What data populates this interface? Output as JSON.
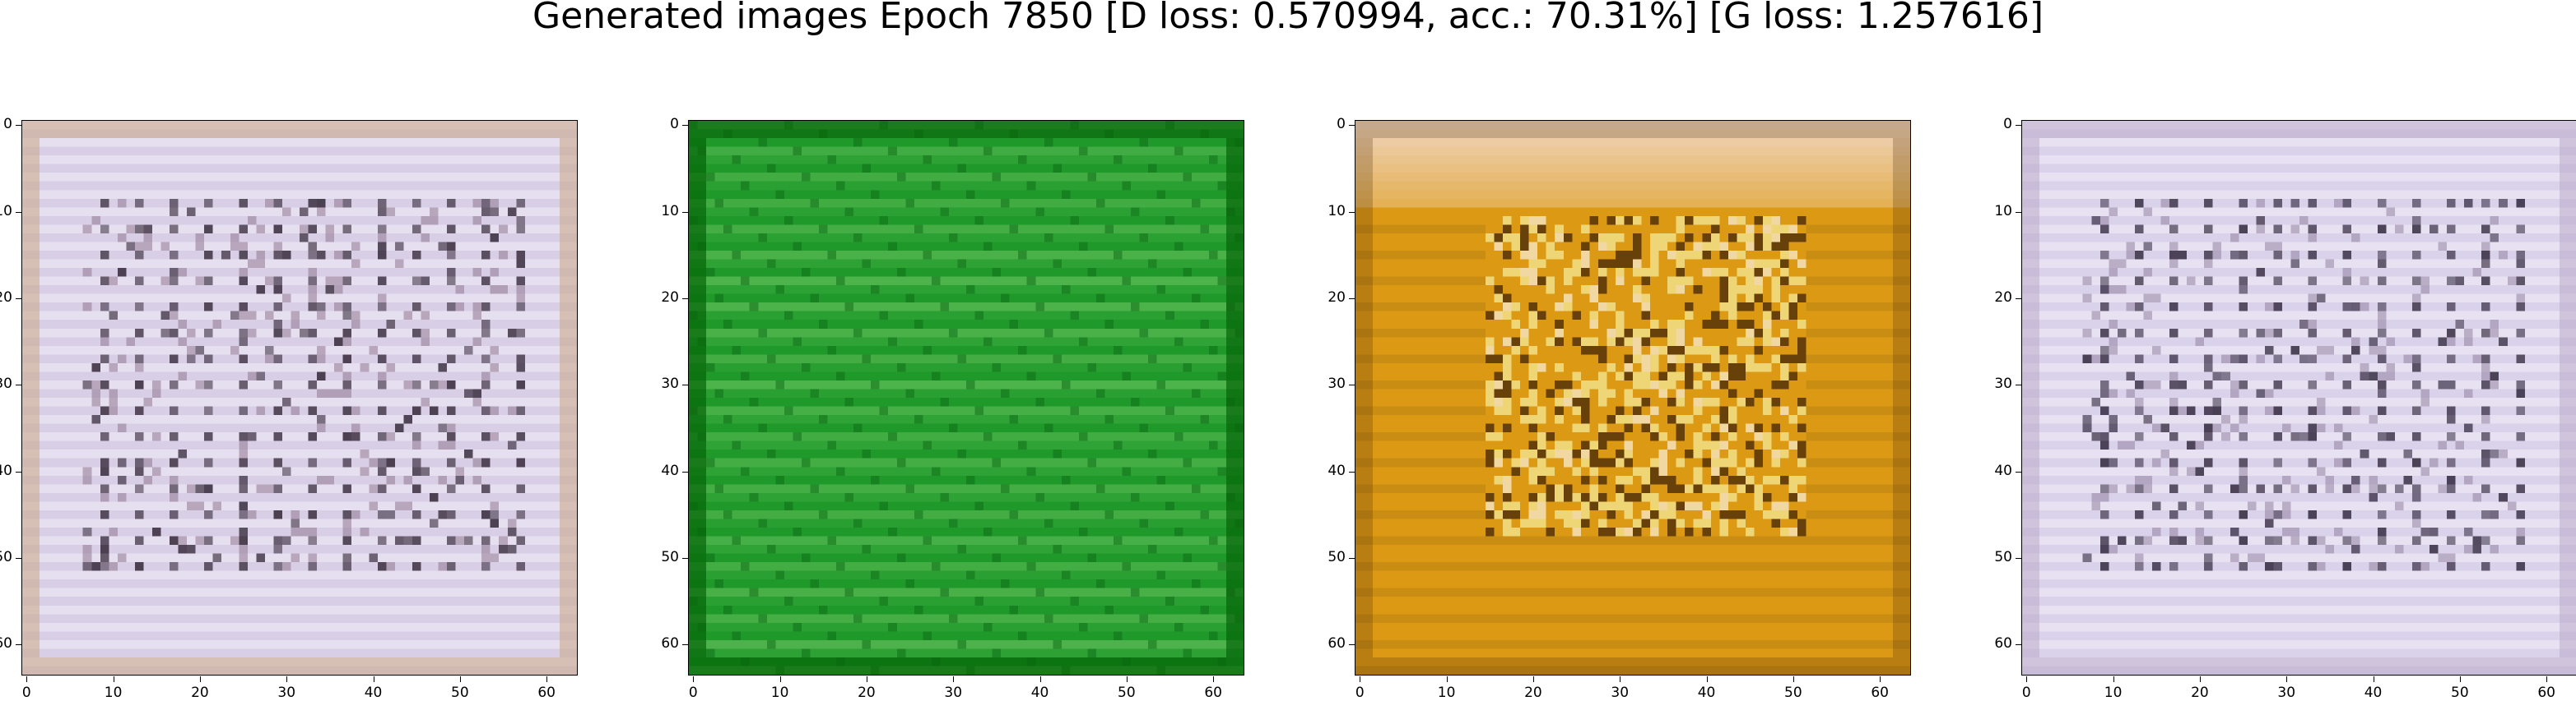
{
  "figure": {
    "title": "Generated images Epoch 7850 [D loss: 0.570994, acc.: 70.31%] [G loss: 1.257616]"
  },
  "chart_data": [
    {
      "type": "heatmap",
      "kind": "generated-image",
      "dominant_tone": "pale lavender/white with dark grid speckles",
      "base_color": "#d8cfe6",
      "accent_colors": [
        "#3b2f40",
        "#f6f2fa",
        "#8a6f88",
        "#c7a27a"
      ],
      "xlim": [
        0,
        63
      ],
      "ylim": [
        63,
        0
      ],
      "xticks": [
        0,
        10,
        20,
        30,
        40,
        50,
        60
      ],
      "yticks": [
        0,
        10,
        20,
        30,
        40,
        50,
        60
      ],
      "grid": false
    },
    {
      "type": "heatmap",
      "kind": "generated-image",
      "dominant_tone": "green with horizontal light stripes",
      "base_color": "#1f9a2a",
      "accent_colors": [
        "#0d6a14",
        "#8fd67a",
        "#056408"
      ],
      "xlim": [
        0,
        63
      ],
      "ylim": [
        63,
        0
      ],
      "xticks": [
        0,
        10,
        20,
        30,
        40,
        50,
        60
      ],
      "yticks": [
        0,
        10,
        20,
        30,
        40,
        50,
        60
      ],
      "grid": false
    },
    {
      "type": "heatmap",
      "kind": "generated-image",
      "dominant_tone": "orange/gold with pale top band and dark center features",
      "base_color": "#dc9a14",
      "accent_colors": [
        "#f6e6f0",
        "#4a2a08",
        "#f5f0a0",
        "#ffffff"
      ],
      "xlim": [
        0,
        63
      ],
      "ylim": [
        63,
        0
      ],
      "xticks": [
        0,
        10,
        20,
        30,
        40,
        50,
        60
      ],
      "yticks": [
        0,
        10,
        20,
        30,
        40,
        50,
        60
      ],
      "grid": false
    },
    {
      "type": "heatmap",
      "kind": "generated-image",
      "dominant_tone": "pale lavender/white with dark grid speckles",
      "base_color": "#d9d2ea",
      "accent_colors": [
        "#3a3046",
        "#f7f4fb",
        "#8c7a9a",
        "#b9a6c8"
      ],
      "xlim": [
        0,
        63
      ],
      "ylim": [
        63,
        0
      ],
      "xticks": [
        0,
        10,
        20,
        30,
        40,
        50,
        60
      ],
      "yticks": [
        0,
        10,
        20,
        30,
        40,
        50,
        60
      ],
      "grid": false
    }
  ]
}
